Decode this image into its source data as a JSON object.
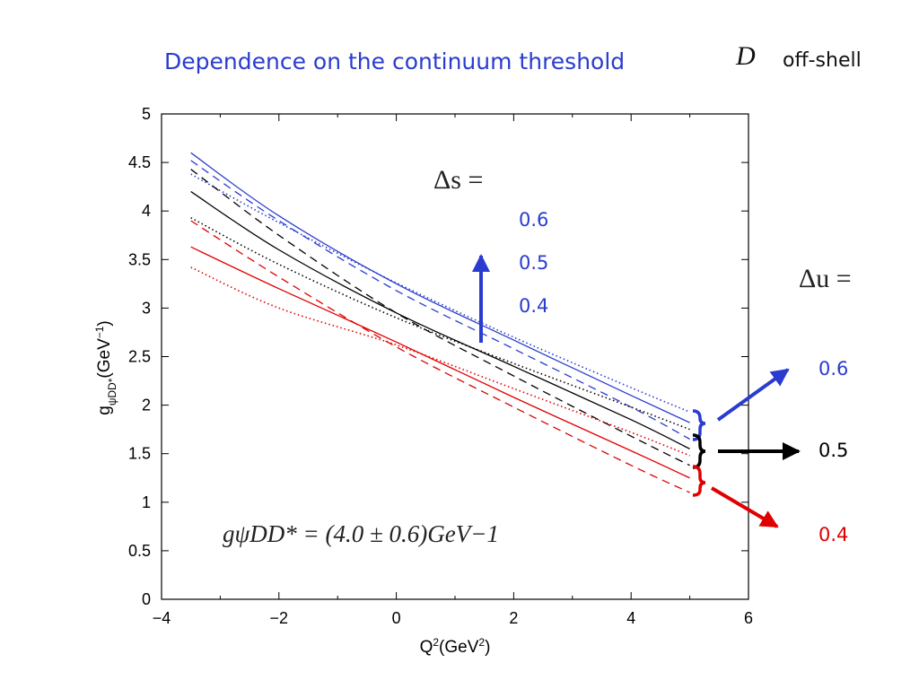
{
  "slide_title": "Dependence on the continuum threshold",
  "corner_symbol": "D",
  "corner_text": "off-shell",
  "annotations": {
    "delta_s_label": "Δs =",
    "delta_s_values": [
      "0.6",
      "0.5",
      "0.4"
    ],
    "delta_u_label": "Δu =",
    "delta_u_values": [
      {
        "text": "0.6",
        "color": "#2a3ccf"
      },
      {
        "text": "0.5",
        "color": "#000000"
      },
      {
        "text": "0.4",
        "color": "#e00000"
      }
    ],
    "formula": "gψDD* = (4.0 ± 0.6)GeV−1"
  },
  "chart_data": {
    "type": "line",
    "xlabel": "Q2(GeV2)",
    "ylabel": "gψDD*(GeV−1)",
    "xlim": [
      -4,
      6
    ],
    "ylim": [
      0,
      5
    ],
    "xticks": [
      "−4",
      "−2",
      "0",
      "2",
      "4",
      "6"
    ],
    "yticks": [
      "0",
      "0.5",
      "1",
      "1.5",
      "2",
      "2.5",
      "3",
      "3.5",
      "4",
      "4.5",
      "5"
    ],
    "x": [
      -3.5,
      -2,
      0,
      2,
      4,
      5
    ],
    "series": [
      {
        "color": "#2a3ccf",
        "style": "solid",
        "values": [
          4.6,
          3.95,
          3.25,
          2.67,
          2.1,
          1.82
        ]
      },
      {
        "color": "#2a3ccf",
        "style": "dashed",
        "values": [
          4.52,
          3.9,
          3.18,
          2.58,
          1.98,
          1.65
        ]
      },
      {
        "color": "#2a3ccf",
        "style": "dotted",
        "values": [
          4.38,
          3.88,
          3.26,
          2.7,
          2.18,
          1.93
        ]
      },
      {
        "color": "#000000",
        "style": "solid",
        "values": [
          4.2,
          3.6,
          2.95,
          2.4,
          1.85,
          1.55
        ]
      },
      {
        "color": "#000000",
        "style": "dashed",
        "values": [
          4.43,
          3.75,
          2.95,
          2.3,
          1.68,
          1.38
        ]
      },
      {
        "color": "#000000",
        "style": "dotted",
        "values": [
          3.93,
          3.45,
          2.9,
          2.43,
          1.98,
          1.75
        ]
      },
      {
        "color": "#e00000",
        "style": "solid",
        "values": [
          3.63,
          3.2,
          2.65,
          2.08,
          1.53,
          1.25
        ]
      },
      {
        "color": "#e00000",
        "style": "dashed",
        "values": [
          3.9,
          3.32,
          2.6,
          1.98,
          1.38,
          1.1
        ]
      },
      {
        "color": "#e00000",
        "style": "dotted",
        "values": [
          3.42,
          3.0,
          2.62,
          2.17,
          1.72,
          1.48
        ]
      }
    ]
  }
}
